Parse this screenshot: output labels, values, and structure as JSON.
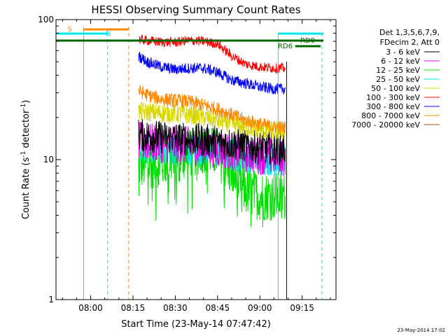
{
  "chart_data": {
    "type": "line",
    "title": "HESSI Observing Summary Count Rates",
    "xlabel": "Start Time (23-May-14 07:47:42)",
    "ylabel_main": "Count Rate (s",
    "ylabel_sup1": "-1",
    "ylabel_mid": " detector",
    "ylabel_sup2": "-1",
    "ylabel_end": ")",
    "y_scale": "log",
    "ylim": [
      1,
      100
    ],
    "xlim": [
      "07:47:42",
      "09:27:00"
    ],
    "x_ticks": [
      "08:00",
      "08:15",
      "08:30",
      "08:45",
      "09:00",
      "09:15"
    ],
    "y_ticks": [
      "1",
      "10",
      "100"
    ],
    "grid": false,
    "legend_position": "top-right",
    "legend_header": [
      "Det 1,3,5,6,7,9,",
      "FDecim 2, Att 0"
    ],
    "series": [
      {
        "name": "3 - 6 keV",
        "color": "#000000",
        "x": [
          "08:17",
          "08:25",
          "08:35",
          "08:45",
          "08:55",
          "09:05",
          "09:09"
        ],
        "values": [
          15,
          14.5,
          14,
          13.5,
          12.5,
          12,
          12
        ]
      },
      {
        "name": "6 - 12 keV",
        "color": "#e000e0",
        "x": [
          "08:17",
          "08:25",
          "08:35",
          "08:45",
          "08:55",
          "09:05",
          "09:09"
        ],
        "values": [
          13.5,
          13,
          12.5,
          12,
          11,
          10.5,
          10.5
        ]
      },
      {
        "name": "12 - 25 keV",
        "color": "#00e000",
        "x": [
          "08:17",
          "08:25",
          "08:35",
          "08:40",
          "08:45",
          "08:50",
          "08:55",
          "09:00",
          "09:05",
          "09:09"
        ],
        "values": [
          9,
          9.5,
          11,
          12,
          11,
          8,
          6,
          5.5,
          5.5,
          5.5
        ]
      },
      {
        "name": "25 - 50 keV",
        "color": "#00e8e8",
        "x": [
          "08:17",
          "08:25",
          "08:35",
          "08:45",
          "08:55",
          "09:05",
          "09:09"
        ],
        "values": [
          12.5,
          12,
          12,
          11.5,
          10.5,
          10,
          10
        ]
      },
      {
        "name": "50 - 100 keV",
        "color": "#d8d800",
        "x": [
          "08:17",
          "08:25",
          "08:35",
          "08:45",
          "08:55",
          "09:05",
          "09:09"
        ],
        "values": [
          22,
          21.5,
          21,
          19,
          17,
          16,
          16
        ]
      },
      {
        "name": "100 - 300 keV",
        "color": "#ff0000",
        "x": [
          "08:17",
          "08:25",
          "08:30",
          "08:35",
          "08:40",
          "08:45",
          "08:50",
          "08:55",
          "09:00",
          "09:05",
          "09:09"
        ],
        "values": [
          72,
          69,
          69,
          71,
          70,
          67,
          55,
          48,
          46,
          45,
          45
        ]
      },
      {
        "name": "300 - 800 keV",
        "color": "#0000ff",
        "x": [
          "08:17",
          "08:20",
          "08:25",
          "08:30",
          "08:35",
          "08:40",
          "08:45",
          "08:50",
          "08:55",
          "09:00",
          "09:05",
          "09:09"
        ],
        "values": [
          55,
          50,
          46,
          44,
          45,
          45,
          42,
          37,
          35,
          33,
          32,
          32
        ]
      },
      {
        "name": "800 - 7000 keV",
        "color": "#ff8800",
        "x": [
          "08:17",
          "08:20",
          "08:25",
          "08:35",
          "08:45",
          "08:55",
          "09:05",
          "09:09"
        ],
        "values": [
          31,
          29,
          27,
          26,
          23,
          19,
          17,
          17
        ]
      },
      {
        "name": "7000 - 20000 keV",
        "color": "#aa5500",
        "x": [],
        "values": []
      }
    ],
    "markers": {
      "saa_bar_label": "S",
      "saa_bar_color": "#ff8800",
      "night_bar_label": "N",
      "night_bar_color": "#00e8e8",
      "rd_label_1": "RD0",
      "rd_label_2": "RD6",
      "rd_color": "#006600",
      "orange_vlines": [
        "07:57:30",
        "08:13:30"
      ],
      "cyan_vlines": [
        "08:06:00",
        "09:06:30",
        "09:22:00"
      ],
      "purple_vline": "09:09:30",
      "purple_color": "#000080"
    }
  },
  "footer_date": "23-May-2014 17:02"
}
